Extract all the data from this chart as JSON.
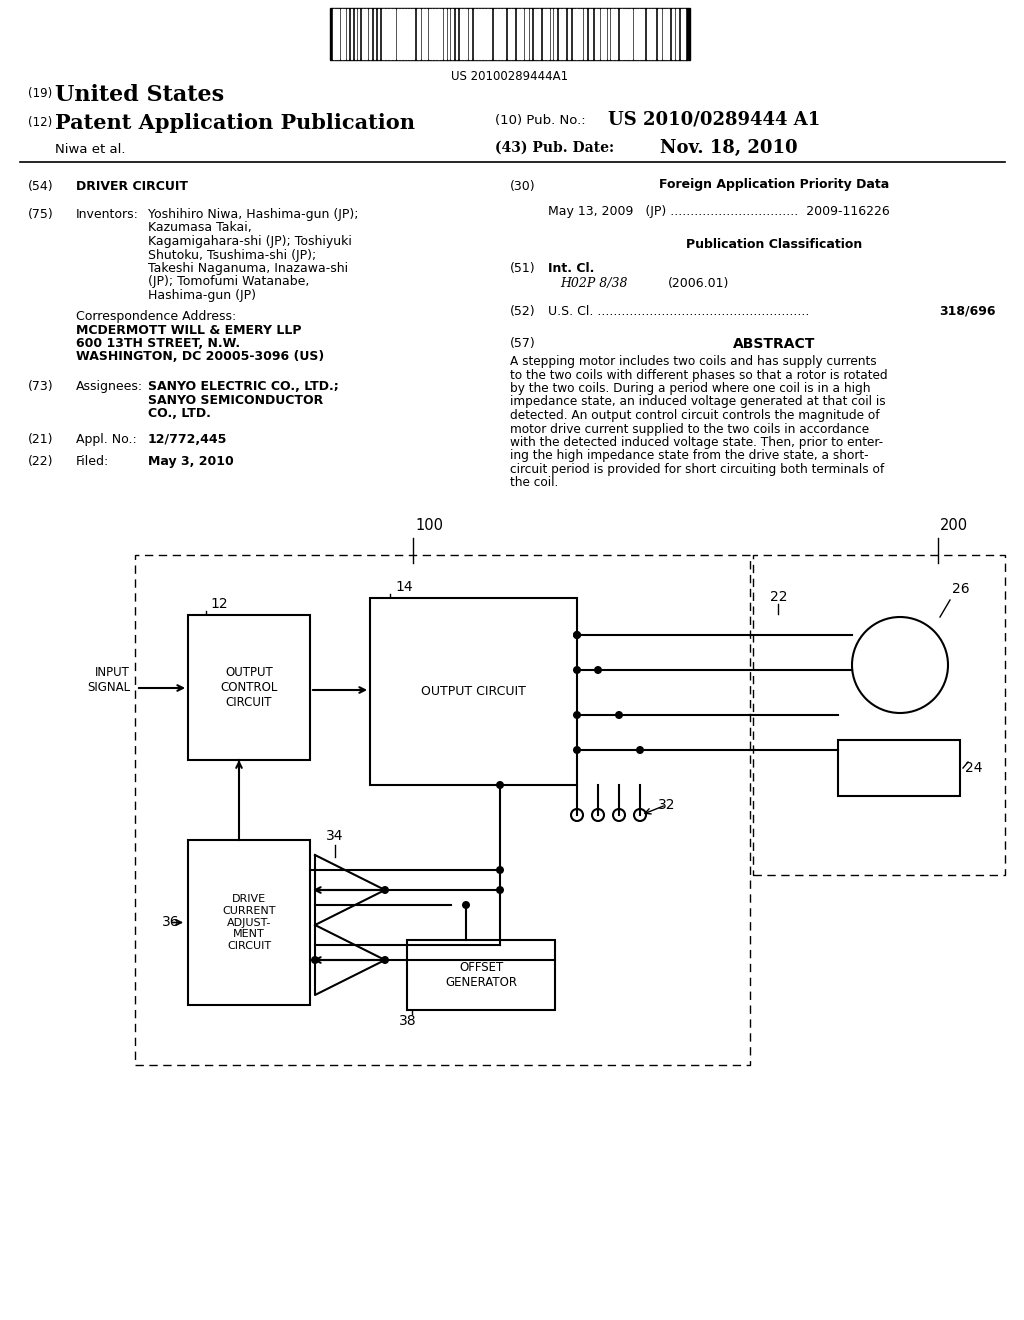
{
  "bg_color": "#ffffff",
  "barcode_text": "US 20100289444A1",
  "title_19_text": "United States",
  "title_12_text": "Patent Application Publication",
  "pub_no_label": "(10) Pub. No.:",
  "pub_no_value": "US 2010/0289444 A1",
  "pub_date_label": "(43) Pub. Date:",
  "pub_date_value": "Nov. 18, 2010",
  "author_line": "Niwa et al.",
  "section_54_title": "DRIVER CIRCUIT",
  "section_75_key": "Inventors:",
  "section_75_val_bold": [
    "Yoshihiro Niwa",
    "Kazumasa Takai",
    "Toshiyuki\nShutoku",
    "Takeshi Naganuma",
    "Tomofumi Watanabe"
  ],
  "section_75_val": "Yoshihiro Niwa, Hashima-gun (JP);\nKazumasa Takai,\nKagamigahara-shi (JP); Toshiyuki\nShutoku, Tsushima-shi (JP);\nTakeshi Naganuma, Inazawa-shi\n(JP); Tomofumi Watanabe,\nHashima-gun (JP)",
  "corr_addr_label": "Correspondence Address:",
  "corr_addr_val": "MCDERMOTT WILL & EMERY LLP\n600 13TH STREET, N.W.\nWASHINGTON, DC 20005-3096 (US)",
  "section_73_key": "Assignees:",
  "section_73_val": "SANYO ELECTRIC CO., LTD.;\nSANYO SEMICONDUCTOR\nCO., LTD.",
  "section_21_key": "Appl. No.:",
  "section_21_val": "12/772,445",
  "section_22_key": "Filed:",
  "section_22_val": "May 3, 2010",
  "section_30_title": "Foreign Application Priority Data",
  "section_30_val": "May 13, 2009   (JP) ................................  2009-116226",
  "pub_class_title": "Publication Classification",
  "section_51_key": "Int. Cl.",
  "section_51_val": "H02P 8/38",
  "section_51_year": "(2006.01)",
  "section_52_key": "U.S. Cl. .....................................................",
  "section_52_val": "318/696",
  "section_57_title": "ABSTRACT",
  "abstract_text": "A stepping motor includes two coils and has supply currents\nto the two coils with different phases so that a rotor is rotated\nby the two coils. During a period where one coil is in a high\nimpedance state, an induced voltage generated at that coil is\ndetected. An output control circuit controls the magnitude of\nmotor drive current supplied to the two coils in accordance\nwith the detected induced voltage state. Then, prior to enter-\ning the high impedance state from the drive state, a short-\ncircuit period is provided for short circuiting both terminals of\nthe coil."
}
